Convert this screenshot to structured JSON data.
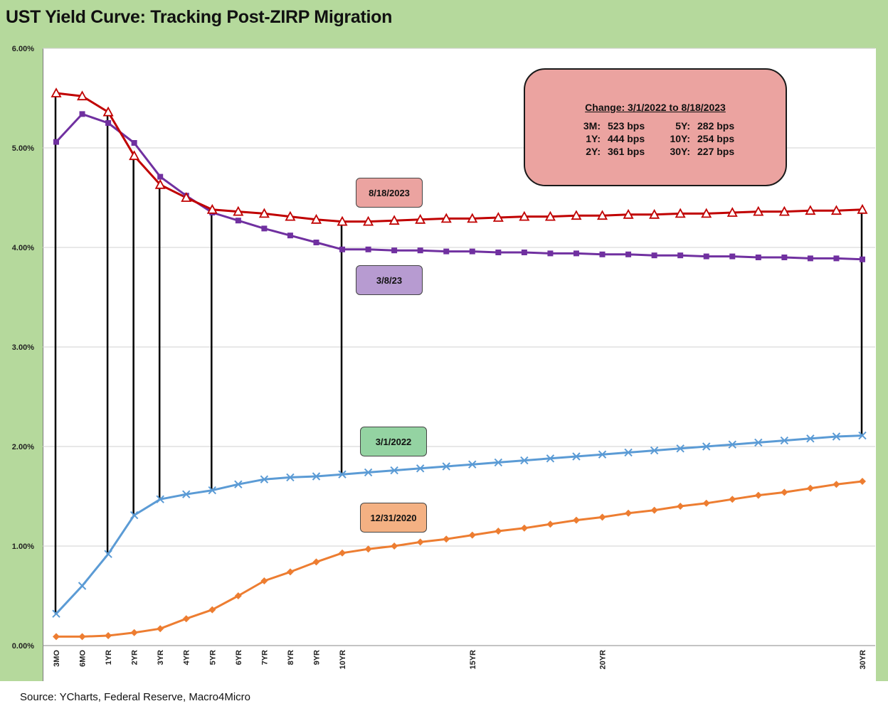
{
  "title": "UST Yield Curve: Tracking Post-ZIRP Migration",
  "source": "Source:  YCharts, Federal Reserve, Macro4Micro",
  "change_box": {
    "title": "Change: 3/1/2022 to 8/18/2023",
    "rows": [
      {
        "label": "3M:",
        "value": "523 bps"
      },
      {
        "label": "1Y:",
        "value": "444 bps"
      },
      {
        "label": "2Y:",
        "value": "361 bps"
      },
      {
        "label": "5Y:",
        "value": "282 bps"
      },
      {
        "label": "10Y:",
        "value": "254 bps"
      },
      {
        "label": "30Y:",
        "value": "227 bps"
      }
    ]
  },
  "chart_data": {
    "type": "line",
    "title": "UST Yield Curve: Tracking Post-ZIRP Migration",
    "xlabel": "",
    "ylabel": "",
    "ylim": [
      0,
      6
    ],
    "y_ticks": [
      "0.00%",
      "1.00%",
      "2.00%",
      "3.00%",
      "4.00%",
      "5.00%",
      "6.00%"
    ],
    "x_labels": [
      "3MO",
      "6MO",
      "1YR",
      "2YR",
      "3YR",
      "4YR",
      "5YR",
      "6YR",
      "7YR",
      "8YR",
      "9YR",
      "10YR",
      "",
      "",
      "",
      "",
      "15YR",
      "",
      "",
      "",
      "",
      "20YR",
      "",
      "",
      "",
      "",
      "",
      "",
      "",
      "",
      "",
      "30YR"
    ],
    "grid": "horizontal",
    "series": [
      {
        "name": "8/18/2023",
        "color": "#c00000",
        "marker": "triangle",
        "values": [
          5.55,
          5.52,
          5.36,
          4.92,
          4.63,
          4.5,
          4.38,
          4.36,
          4.34,
          4.31,
          4.28,
          4.26,
          4.26,
          4.27,
          4.28,
          4.29,
          4.29,
          4.3,
          4.31,
          4.31,
          4.32,
          4.32,
          4.33,
          4.33,
          4.34,
          4.34,
          4.35,
          4.36,
          4.36,
          4.37,
          4.37,
          4.38
        ]
      },
      {
        "name": "3/8/23",
        "color": "#7030a0",
        "marker": "square",
        "values": [
          5.06,
          5.34,
          5.25,
          5.05,
          4.71,
          4.52,
          4.35,
          4.27,
          4.19,
          4.12,
          4.05,
          3.98,
          3.98,
          3.97,
          3.97,
          3.96,
          3.96,
          3.95,
          3.95,
          3.94,
          3.94,
          3.93,
          3.93,
          3.92,
          3.92,
          3.91,
          3.91,
          3.9,
          3.9,
          3.89,
          3.89,
          3.88
        ]
      },
      {
        "name": "3/1/2022",
        "color": "#5b9bd5",
        "marker": "x",
        "values": [
          0.32,
          0.6,
          0.92,
          1.31,
          1.47,
          1.52,
          1.56,
          1.62,
          1.67,
          1.69,
          1.7,
          1.72,
          1.74,
          1.76,
          1.78,
          1.8,
          1.82,
          1.84,
          1.86,
          1.88,
          1.9,
          1.92,
          1.94,
          1.96,
          1.98,
          2.0,
          2.02,
          2.04,
          2.06,
          2.08,
          2.1,
          2.11
        ]
      },
      {
        "name": "12/31/2020",
        "color": "#ed7d31",
        "marker": "diamond",
        "values": [
          0.09,
          0.09,
          0.1,
          0.13,
          0.17,
          0.27,
          0.36,
          0.5,
          0.65,
          0.74,
          0.84,
          0.93,
          0.97,
          1.0,
          1.04,
          1.07,
          1.11,
          1.15,
          1.18,
          1.22,
          1.26,
          1.29,
          1.33,
          1.36,
          1.4,
          1.43,
          1.47,
          1.51,
          1.54,
          1.58,
          1.62,
          1.65
        ]
      }
    ],
    "change_lines_at": [
      "3MO",
      "1YR",
      "2YR",
      "3YR",
      "5YR",
      "10YR",
      "30YR"
    ],
    "series_labels": [
      {
        "series": "8/18/2023",
        "fill": "#eba3a0"
      },
      {
        "series": "3/8/23",
        "fill": "#b79bd1"
      },
      {
        "series": "3/1/2022",
        "fill": "#94d3a2"
      },
      {
        "series": "12/31/2020",
        "fill": "#f4b183"
      }
    ]
  }
}
